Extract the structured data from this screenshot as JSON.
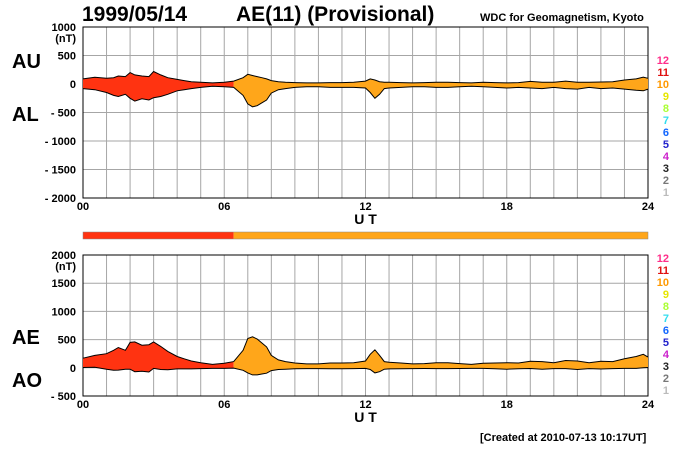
{
  "header": {
    "date": "1999/05/14",
    "title": "AE(11) (Provisional)",
    "source": "WDC for Geomagnetism, Kyoto"
  },
  "labels": {
    "au": "AU",
    "al": "AL",
    "ae": "AE",
    "ao": "AO"
  },
  "footer": {
    "created": "[Created at 2010-07-13 10:17UT]"
  },
  "colors": {
    "early": "#ff3311",
    "main": "#ffa61a",
    "grid": "#a6a6a6"
  },
  "status_scale": {
    "levels": [
      "12",
      "11",
      "10",
      "9",
      "8",
      "7",
      "6",
      "5",
      "4",
      "3",
      "2",
      "1"
    ],
    "colors": [
      "#ff2e8a",
      "#e01010",
      "#ff9900",
      "#e6e600",
      "#aaff33",
      "#33ddee",
      "#1166ff",
      "#2222cc",
      "#cc22cc",
      "#222222",
      "#777777",
      "#bbbbbb"
    ]
  },
  "quality_bar": [
    {
      "start": 0,
      "end": 6.4,
      "color": "#ff3311"
    },
    {
      "start": 6.4,
      "end": 24,
      "color": "#ffa61a"
    }
  ],
  "chart_data": [
    {
      "type": "area",
      "panel": "AU/AL",
      "unit": "(nT)",
      "xlabel": "U T",
      "xlim": [
        0,
        24
      ],
      "ylim": [
        -2000,
        1000
      ],
      "xticks": [
        0,
        6,
        12,
        18,
        24
      ],
      "xtick_labels": [
        "00",
        "06",
        "12",
        "18",
        "24"
      ],
      "yticks": [
        1000,
        500,
        0,
        -500,
        -1000,
        -1500,
        -2000
      ],
      "ytick_labels": [
        "1000",
        "500",
        "0",
        "- 500",
        "- 1000",
        "- 1500",
        "- 2000"
      ],
      "grid": true,
      "x": [
        0,
        0.5,
        1,
        1.3,
        1.5,
        1.8,
        2,
        2.2,
        2.5,
        2.8,
        3,
        3.3,
        3.6,
        4,
        4.3,
        4.6,
        5,
        5.5,
        6,
        6.4,
        6.8,
        7,
        7.2,
        7.4,
        7.6,
        7.8,
        8,
        8.3,
        8.6,
        9,
        9.5,
        10,
        10.5,
        11,
        11.5,
        12,
        12.2,
        12.4,
        12.6,
        12.8,
        13,
        13.5,
        14,
        14.5,
        15,
        15.5,
        16,
        16.5,
        17,
        17.5,
        18,
        18.5,
        19,
        19.5,
        20,
        20.5,
        21,
        21.5,
        22,
        22.5,
        23,
        23.5,
        23.8,
        24
      ],
      "series": [
        {
          "name": "AU",
          "values": [
            90,
            120,
            100,
            110,
            140,
            130,
            200,
            160,
            140,
            130,
            220,
            160,
            110,
            80,
            60,
            40,
            30,
            20,
            30,
            50,
            110,
            170,
            150,
            130,
            110,
            90,
            60,
            40,
            30,
            25,
            20,
            20,
            25,
            25,
            30,
            50,
            90,
            70,
            40,
            30,
            30,
            25,
            20,
            25,
            30,
            30,
            25,
            20,
            30,
            25,
            20,
            25,
            45,
            30,
            30,
            50,
            30,
            30,
            35,
            40,
            70,
            90,
            120,
            100
          ]
        },
        {
          "name": "AL",
          "values": [
            -80,
            -100,
            -150,
            -200,
            -220,
            -180,
            -250,
            -300,
            -260,
            -280,
            -240,
            -220,
            -180,
            -120,
            -100,
            -80,
            -60,
            -40,
            -50,
            -60,
            -200,
            -350,
            -400,
            -380,
            -330,
            -280,
            -160,
            -100,
            -80,
            -60,
            -50,
            -50,
            -60,
            -60,
            -60,
            -70,
            -150,
            -250,
            -180,
            -80,
            -70,
            -60,
            -50,
            -50,
            -60,
            -60,
            -50,
            -40,
            -50,
            -60,
            -70,
            -60,
            -70,
            -80,
            -60,
            -80,
            -90,
            -60,
            -80,
            -70,
            -90,
            -110,
            -120,
            -90
          ]
        }
      ]
    },
    {
      "type": "area",
      "panel": "AE/AO",
      "unit": "(nT)",
      "xlabel": "U T",
      "xlim": [
        0,
        24
      ],
      "ylim": [
        -500,
        2000
      ],
      "xticks": [
        0,
        6,
        12,
        18,
        24
      ],
      "xtick_labels": [
        "00",
        "06",
        "12",
        "18",
        "24"
      ],
      "yticks": [
        2000,
        1500,
        1000,
        500,
        0,
        -500
      ],
      "ytick_labels": [
        "2000",
        "1500",
        "1000",
        "500",
        "0",
        "- 500"
      ],
      "grid": true,
      "x": [
        0,
        0.5,
        1,
        1.3,
        1.5,
        1.8,
        2,
        2.2,
        2.5,
        2.8,
        3,
        3.3,
        3.6,
        4,
        4.3,
        4.6,
        5,
        5.5,
        6,
        6.4,
        6.8,
        7,
        7.2,
        7.4,
        7.6,
        7.8,
        8,
        8.3,
        8.6,
        9,
        9.5,
        10,
        10.5,
        11,
        11.5,
        12,
        12.2,
        12.4,
        12.6,
        12.8,
        13,
        13.5,
        14,
        14.5,
        15,
        15.5,
        16,
        16.5,
        17,
        17.5,
        18,
        18.5,
        19,
        19.5,
        20,
        20.5,
        21,
        21.5,
        22,
        22.5,
        23,
        23.5,
        23.8,
        24
      ],
      "series": [
        {
          "name": "AE",
          "values": [
            170,
            220,
            250,
            310,
            360,
            310,
            450,
            460,
            400,
            410,
            460,
            380,
            290,
            200,
            160,
            120,
            90,
            60,
            80,
            110,
            310,
            520,
            550,
            510,
            440,
            370,
            220,
            140,
            110,
            85,
            70,
            70,
            85,
            85,
            90,
            120,
            240,
            320,
            220,
            110,
            100,
            85,
            70,
            75,
            90,
            90,
            75,
            60,
            80,
            85,
            90,
            85,
            115,
            110,
            90,
            130,
            120,
            90,
            115,
            110,
            160,
            200,
            240,
            190
          ]
        },
        {
          "name": "AO",
          "values": [
            5,
            10,
            -25,
            -45,
            -40,
            -25,
            -25,
            -70,
            -60,
            -75,
            -10,
            -30,
            -35,
            -20,
            -20,
            -20,
            -15,
            -10,
            -10,
            -5,
            -45,
            -90,
            -125,
            -125,
            -110,
            -95,
            -50,
            -30,
            -25,
            -18,
            -15,
            -15,
            -18,
            -18,
            -15,
            -10,
            -30,
            -90,
            -70,
            -25,
            -20,
            -18,
            -15,
            -12,
            -15,
            -15,
            -12,
            -10,
            -10,
            -18,
            -25,
            -18,
            -13,
            -25,
            -15,
            -15,
            -30,
            -15,
            -22,
            -15,
            -10,
            -10,
            0,
            5
          ]
        }
      ]
    }
  ]
}
